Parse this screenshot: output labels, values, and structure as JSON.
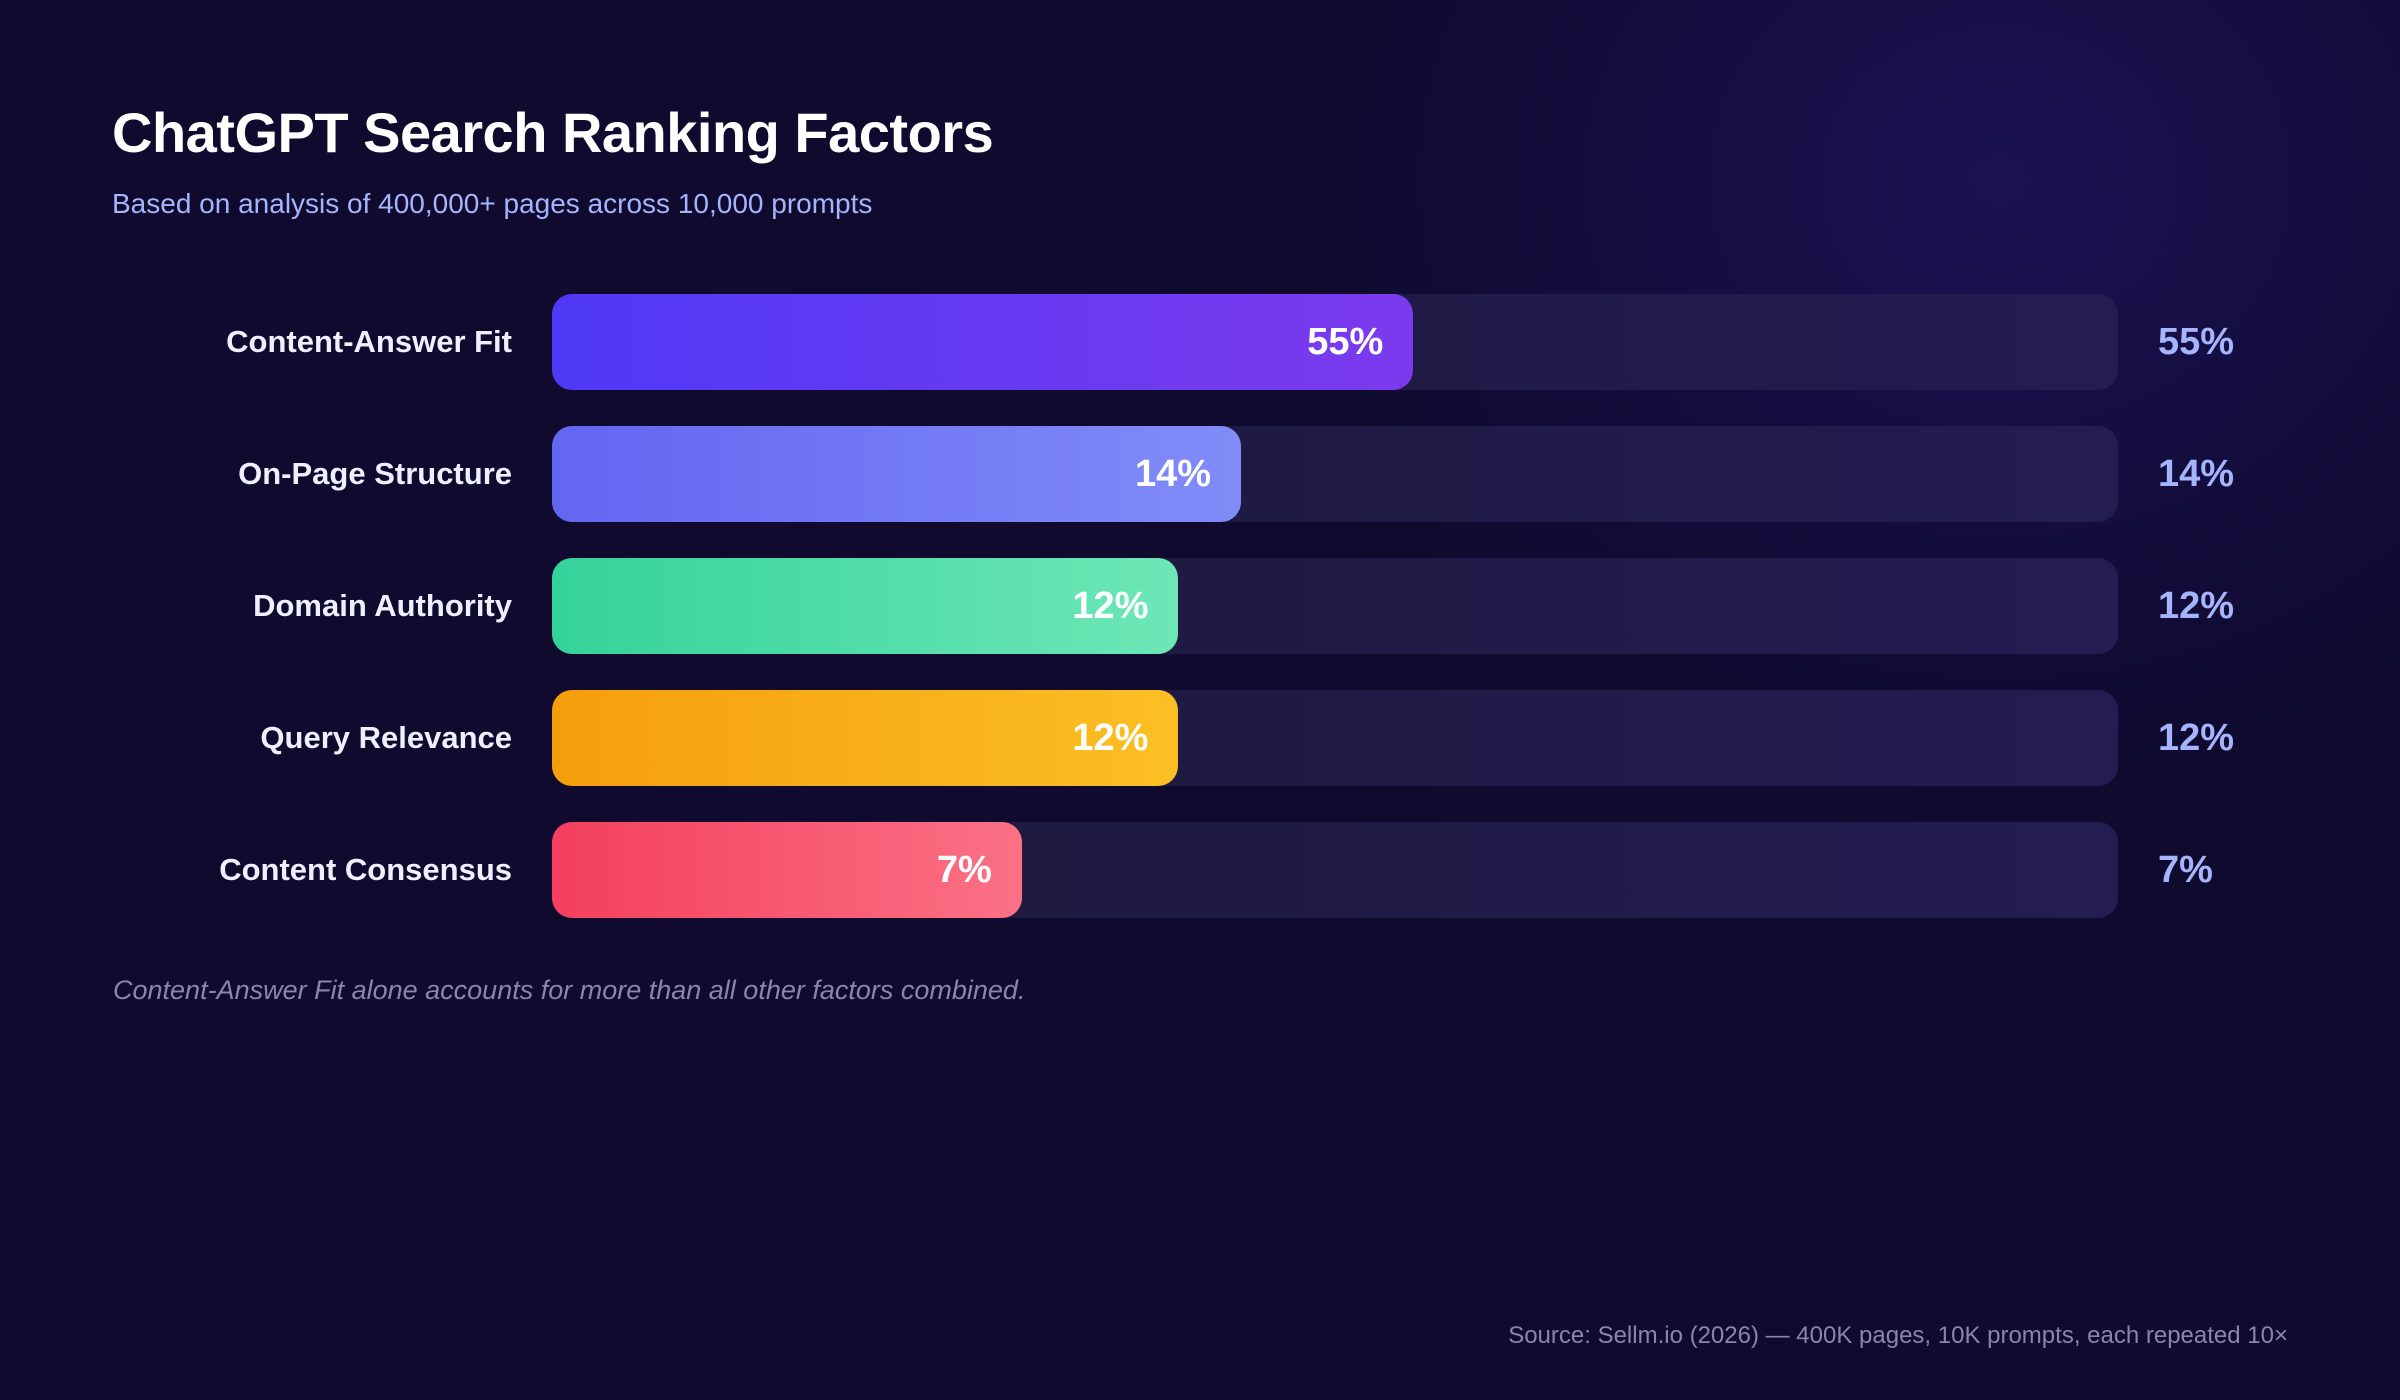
{
  "chart_data": {
    "type": "bar",
    "orientation": "horizontal",
    "title": "ChatGPT Search Ranking Factors",
    "subtitle": "Based on analysis of 400,000+ pages across 10,000 prompts",
    "categories": [
      "Content-Answer Fit",
      "On-Page Structure",
      "Domain Authority",
      "Query Relevance",
      "Content Consensus"
    ],
    "values": [
      55,
      14,
      12,
      12,
      7
    ],
    "value_labels": [
      "55%",
      "14%",
      "12%",
      "12%",
      "7%"
    ],
    "colors": [
      [
        "#4f39f6",
        "#7c3aed"
      ],
      [
        "#6366f1",
        "#818cf8"
      ],
      [
        "#34d399",
        "#6ee7b7"
      ],
      [
        "#f59e0b",
        "#fbbf24"
      ],
      [
        "#f43f5e",
        "#fb7185"
      ]
    ],
    "grid": false,
    "legend": "none",
    "annotation": "Content-Answer Fit alone accounts for more than all other factors combined.",
    "source": "Source: Sellm.io (2026) — 400K pages, 10K prompts, each repeated 10×"
  }
}
